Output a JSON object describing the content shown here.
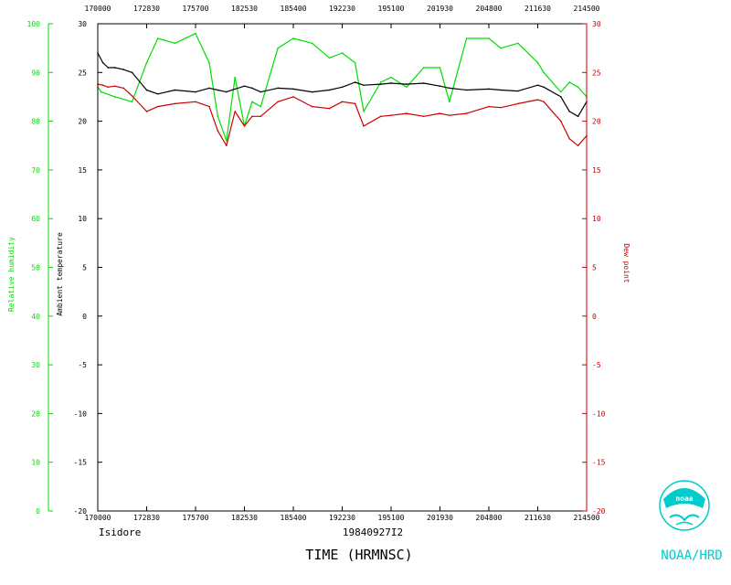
{
  "chart_data": {
    "type": "line",
    "storm": "Isidore",
    "flight_id": "19840927I2",
    "xlabel": "TIME (HRMNSC)",
    "x_ticks": [
      "170000",
      "172830",
      "175700",
      "182530",
      "185400",
      "192230",
      "195100",
      "201930",
      "204800",
      "211630",
      "214500"
    ],
    "x_range_sec_of_day": [
      61200,
      78300
    ],
    "left_axis_1": {
      "label": "Relative humidity",
      "range": [
        0,
        100
      ],
      "ticks": [
        "0",
        "10",
        "20",
        "30",
        "40",
        "50",
        "60",
        "70",
        "80",
        "90",
        "100"
      ],
      "color": "#00dd00"
    },
    "left_axis_2": {
      "label": "Ambient temperature",
      "range": [
        -20,
        30
      ],
      "ticks": [
        "-20",
        "-15",
        "-10",
        "-5",
        "0",
        "5",
        "10",
        "15",
        "20",
        "25",
        "30"
      ],
      "color": "#000000"
    },
    "right_axis": {
      "label": "Dew point",
      "range": [
        -20,
        30
      ],
      "ticks": [
        "-20",
        "-15",
        "-10",
        "-5",
        "0",
        "5",
        "10",
        "15",
        "20",
        "25",
        "30"
      ],
      "color": "#cc0000"
    },
    "series": [
      {
        "name": "Relative humidity",
        "axis": "left_axis_1",
        "color": "#00dd00",
        "x": [
          "170000",
          "170200",
          "171000",
          "172000",
          "172830",
          "173500",
          "174500",
          "175700",
          "180500",
          "181000",
          "181500",
          "182000",
          "182530",
          "183000",
          "183500",
          "184500",
          "185400",
          "190500",
          "191500",
          "192230",
          "193000",
          "193500",
          "194500",
          "195100",
          "200000",
          "201000",
          "201930",
          "202500",
          "203500",
          "204800",
          "205500",
          "210500",
          "211630",
          "212000",
          "213000",
          "213500",
          "214000",
          "214500"
        ],
        "values": [
          87,
          86,
          85,
          84,
          92,
          97,
          96,
          98,
          92,
          81,
          76,
          89,
          79,
          84,
          83,
          95,
          97,
          96,
          93,
          94,
          92,
          82,
          88,
          89,
          87,
          91,
          91,
          84,
          97,
          97,
          95,
          96,
          92,
          90,
          86,
          88,
          87,
          85
        ]
      },
      {
        "name": "Ambient temperature",
        "axis": "left_axis_2",
        "color": "#000000",
        "x": [
          "170000",
          "170300",
          "170600",
          "171000",
          "171500",
          "172000",
          "172830",
          "173500",
          "174500",
          "175700",
          "180500",
          "181000",
          "181500",
          "182000",
          "182530",
          "183000",
          "183500",
          "184500",
          "185400",
          "190500",
          "191500",
          "192230",
          "193000",
          "193500",
          "194500",
          "195100",
          "200000",
          "201000",
          "201930",
          "202500",
          "203500",
          "204800",
          "205500",
          "210500",
          "211630",
          "212000",
          "213000",
          "213500",
          "214000",
          "214500"
        ],
        "values": [
          27,
          26,
          25.5,
          25.5,
          25.3,
          25,
          23.2,
          22.8,
          23.2,
          23,
          23.4,
          23.2,
          23,
          23.3,
          23.6,
          23.4,
          23,
          23.4,
          23.3,
          23,
          23.2,
          23.5,
          24,
          23.7,
          23.8,
          23.9,
          23.8,
          23.9,
          23.6,
          23.4,
          23.2,
          23.3,
          23.2,
          23.1,
          23.7,
          23.5,
          22.5,
          21,
          20.5,
          22
        ]
      },
      {
        "name": "Dew point",
        "axis": "right_axis",
        "color": "#cc0000",
        "x": [
          "170000",
          "170300",
          "170600",
          "171000",
          "171500",
          "172000",
          "172830",
          "173500",
          "174500",
          "175700",
          "180500",
          "181000",
          "181500",
          "182000",
          "182530",
          "183000",
          "183500",
          "184500",
          "185400",
          "190500",
          "191500",
          "192230",
          "193000",
          "193500",
          "194500",
          "195100",
          "200000",
          "201000",
          "201930",
          "202500",
          "203500",
          "204800",
          "205500",
          "210500",
          "211630",
          "212000",
          "213000",
          "213500",
          "214000",
          "214500"
        ],
        "values": [
          23.8,
          23.7,
          23.5,
          23.6,
          23.4,
          22.6,
          21,
          21.5,
          21.8,
          22,
          21.5,
          19,
          17.5,
          21,
          19.5,
          20.5,
          20.5,
          22,
          22.5,
          21.5,
          21.3,
          22,
          21.8,
          19.5,
          20.5,
          20.6,
          20.8,
          20.5,
          20.8,
          20.6,
          20.8,
          21.5,
          21.4,
          21.8,
          22.2,
          22,
          20,
          18.2,
          17.5,
          18.5
        ]
      }
    ]
  },
  "agency": "NOAA/HRD",
  "logo_text": "noaa"
}
